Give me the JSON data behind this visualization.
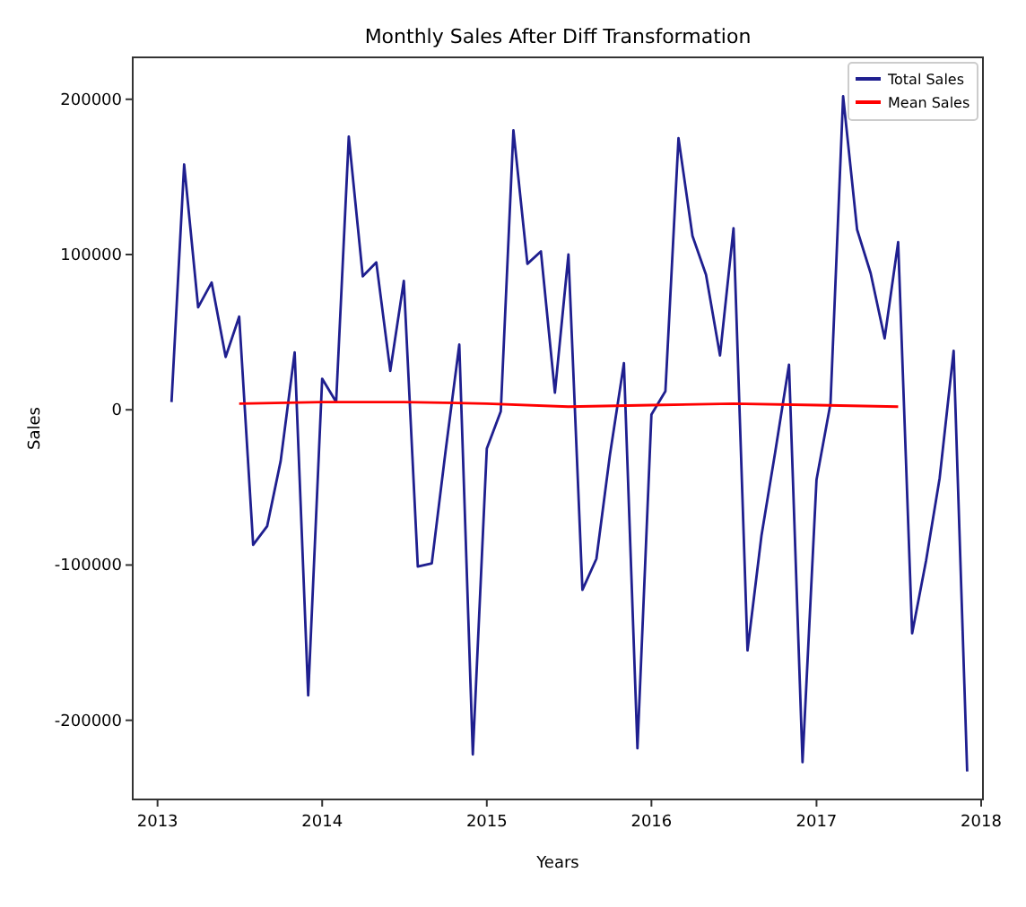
{
  "chart_data": {
    "type": "line",
    "title": "Monthly Sales After Diff Transformation",
    "xlabel": "Years",
    "ylabel": "Sales",
    "xlim": [
      "2012-11-07",
      "2018-01-05"
    ],
    "xticks": [
      "2013",
      "2014",
      "2015",
      "2016",
      "2017",
      "2018"
    ],
    "ylim": [
      -251000,
      227000
    ],
    "yticks": [
      -200000,
      -100000,
      0,
      100000,
      200000
    ],
    "grid": false,
    "legend": "top right",
    "series": [
      {
        "name": "Total Sales",
        "color": "#1f1f8f",
        "x": [
          "2013-02",
          "2013-03",
          "2013-04",
          "2013-05",
          "2013-06",
          "2013-07",
          "2013-08",
          "2013-09",
          "2013-10",
          "2013-11",
          "2013-12",
          "2014-01",
          "2014-02",
          "2014-03",
          "2014-04",
          "2014-05",
          "2014-06",
          "2014-07",
          "2014-08",
          "2014-09",
          "2014-10",
          "2014-11",
          "2014-12",
          "2015-01",
          "2015-02",
          "2015-03",
          "2015-04",
          "2015-05",
          "2015-06",
          "2015-07",
          "2015-08",
          "2015-09",
          "2015-10",
          "2015-11",
          "2015-12",
          "2016-01",
          "2016-02",
          "2016-03",
          "2016-04",
          "2016-05",
          "2016-06",
          "2016-07",
          "2016-08",
          "2016-09",
          "2016-10",
          "2016-11",
          "2016-12",
          "2017-01",
          "2017-02",
          "2017-03",
          "2017-04",
          "2017-05",
          "2017-06",
          "2017-07",
          "2017-08",
          "2017-09",
          "2017-10",
          "2017-11",
          "2017-12"
        ],
        "values": [
          5000,
          158000,
          66000,
          82000,
          34000,
          60000,
          -87000,
          -75000,
          -33000,
          37000,
          -184000,
          20000,
          5000,
          176000,
          86000,
          95000,
          25000,
          83000,
          -101000,
          -99000,
          -28000,
          42000,
          -222000,
          -25000,
          -1000,
          180000,
          94000,
          102000,
          11000,
          100000,
          -116000,
          -96000,
          -29000,
          30000,
          -218000,
          -3000,
          12000,
          175000,
          112000,
          87000,
          35000,
          117000,
          -155000,
          -81000,
          -28000,
          29000,
          -227000,
          -45000,
          4000,
          202000,
          116000,
          88000,
          46000,
          108000,
          -144000,
          -97000,
          -44000,
          38000,
          -233000
        ]
      },
      {
        "name": "Mean Sales",
        "color": "#ff0000",
        "x": [
          "2013-07",
          "2014-01",
          "2014-07",
          "2015-01",
          "2015-07",
          "2016-01",
          "2016-07",
          "2017-01",
          "2017-07"
        ],
        "values": [
          4000,
          5000,
          5000,
          4000,
          2000,
          3000,
          4000,
          3000,
          2000
        ]
      }
    ]
  }
}
